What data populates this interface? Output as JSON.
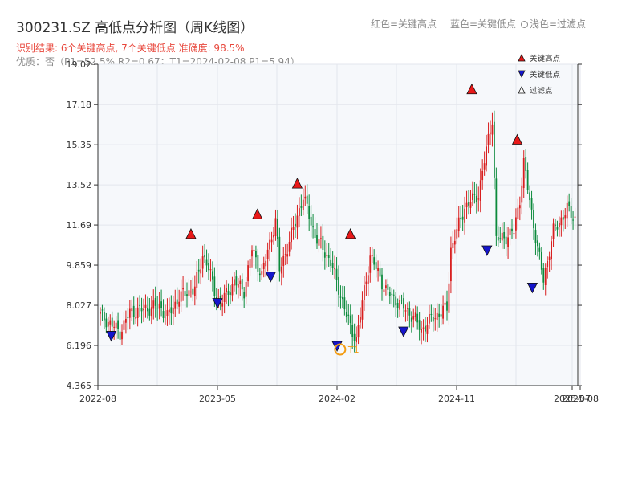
{
  "header": {
    "title": "300231.SZ 高低点分析图（周K线图）",
    "result_line": "识别结果: 6个关键高点, 7个关键低点  准确度: 98.5%",
    "quality_line": "优质：否（P1=52.5%  R2=0.67；T1=2024-02-08 P1=5.94）",
    "legend_red": "红色=关键高点",
    "legend_blue": "蓝色=关键低点",
    "legend_light": "浅色=过滤点"
  },
  "chart_data": {
    "type": "candlestick",
    "ylim": [
      4.365,
      19.02
    ],
    "yticks": [
      "4.365",
      "6.196",
      "8.027",
      "9.859",
      "11.69",
      "13.52",
      "15.35",
      "17.18",
      "19.02"
    ],
    "xticks": [
      "2022-08",
      "2023-05",
      "2024-02",
      "2024-11",
      "2025-07",
      "2025-08"
    ],
    "xlabel": "",
    "ylabel": "",
    "colors": {
      "up": "#d81e1e",
      "down": "#0c8a3c",
      "high_marker": "#e81818",
      "low_marker": "#1515cc",
      "t1": "#f39c12"
    },
    "legend": {
      "position": "top-right",
      "items": [
        {
          "label": "关键高点",
          "marker": "triangle-up",
          "color": "#e81818"
        },
        {
          "label": "关键低点",
          "marker": "triangle-down",
          "color": "#1515cc"
        },
        {
          "label": "过滤点",
          "marker": "triangle-up-hollow",
          "color": "#ffffff"
        }
      ]
    },
    "t1": {
      "label": "T1",
      "date": "2024-02-08",
      "value": 5.94
    },
    "key_highs": [
      {
        "date": "2023-03",
        "value": 11.0
      },
      {
        "date": "2023-08",
        "value": 11.9
      },
      {
        "date": "2023-11",
        "value": 13.3
      },
      {
        "date": "2024-03",
        "value": 11.0
      },
      {
        "date": "2024-12",
        "value": 17.6
      },
      {
        "date": "2025-03",
        "value": 15.3
      }
    ],
    "key_lows": [
      {
        "date": "2022-09",
        "value": 6.4
      },
      {
        "date": "2023-05",
        "value": 7.9
      },
      {
        "date": "2023-09",
        "value": 9.1
      },
      {
        "date": "2024-02",
        "value": 5.94
      },
      {
        "date": "2024-07",
        "value": 6.6
      },
      {
        "date": "2025-01",
        "value": 10.3
      },
      {
        "date": "2025-04",
        "value": 8.6
      }
    ],
    "waypoints": [
      [
        0,
        7.6
      ],
      [
        10,
        6.8
      ],
      [
        15,
        7.7
      ],
      [
        30,
        8.0
      ],
      [
        34,
        7.5
      ],
      [
        40,
        8.4
      ],
      [
        48,
        8.8
      ],
      [
        52,
        10.3
      ],
      [
        54,
        10.0
      ],
      [
        59,
        8.4
      ],
      [
        61,
        8.1
      ],
      [
        68,
        9.1
      ],
      [
        73,
        8.7
      ],
      [
        77,
        10.6
      ],
      [
        82,
        9.4
      ],
      [
        85,
        10.5
      ],
      [
        89,
        11.9
      ],
      [
        91,
        9.6
      ],
      [
        98,
        11.5
      ],
      [
        103,
        13.0
      ],
      [
        109,
        11.2
      ],
      [
        117,
        10.0
      ],
      [
        127,
        7.0
      ],
      [
        130,
        6.5
      ],
      [
        137,
        10.3
      ],
      [
        145,
        8.7
      ],
      [
        159,
        7.5
      ],
      [
        163,
        6.9
      ],
      [
        168,
        7.4
      ],
      [
        176,
        7.9
      ],
      [
        178,
        10.6
      ],
      [
        185,
        12.5
      ],
      [
        192,
        13.1
      ],
      [
        199,
        16.6
      ],
      [
        201,
        11.0
      ],
      [
        207,
        11.2
      ],
      [
        210,
        11.4
      ],
      [
        213,
        12.9
      ],
      [
        215,
        14.5
      ],
      [
        222,
        10.6
      ],
      [
        225,
        9.2
      ],
      [
        230,
        11.4
      ],
      [
        237,
        12.4
      ],
      [
        241,
        12.0
      ]
    ]
  }
}
